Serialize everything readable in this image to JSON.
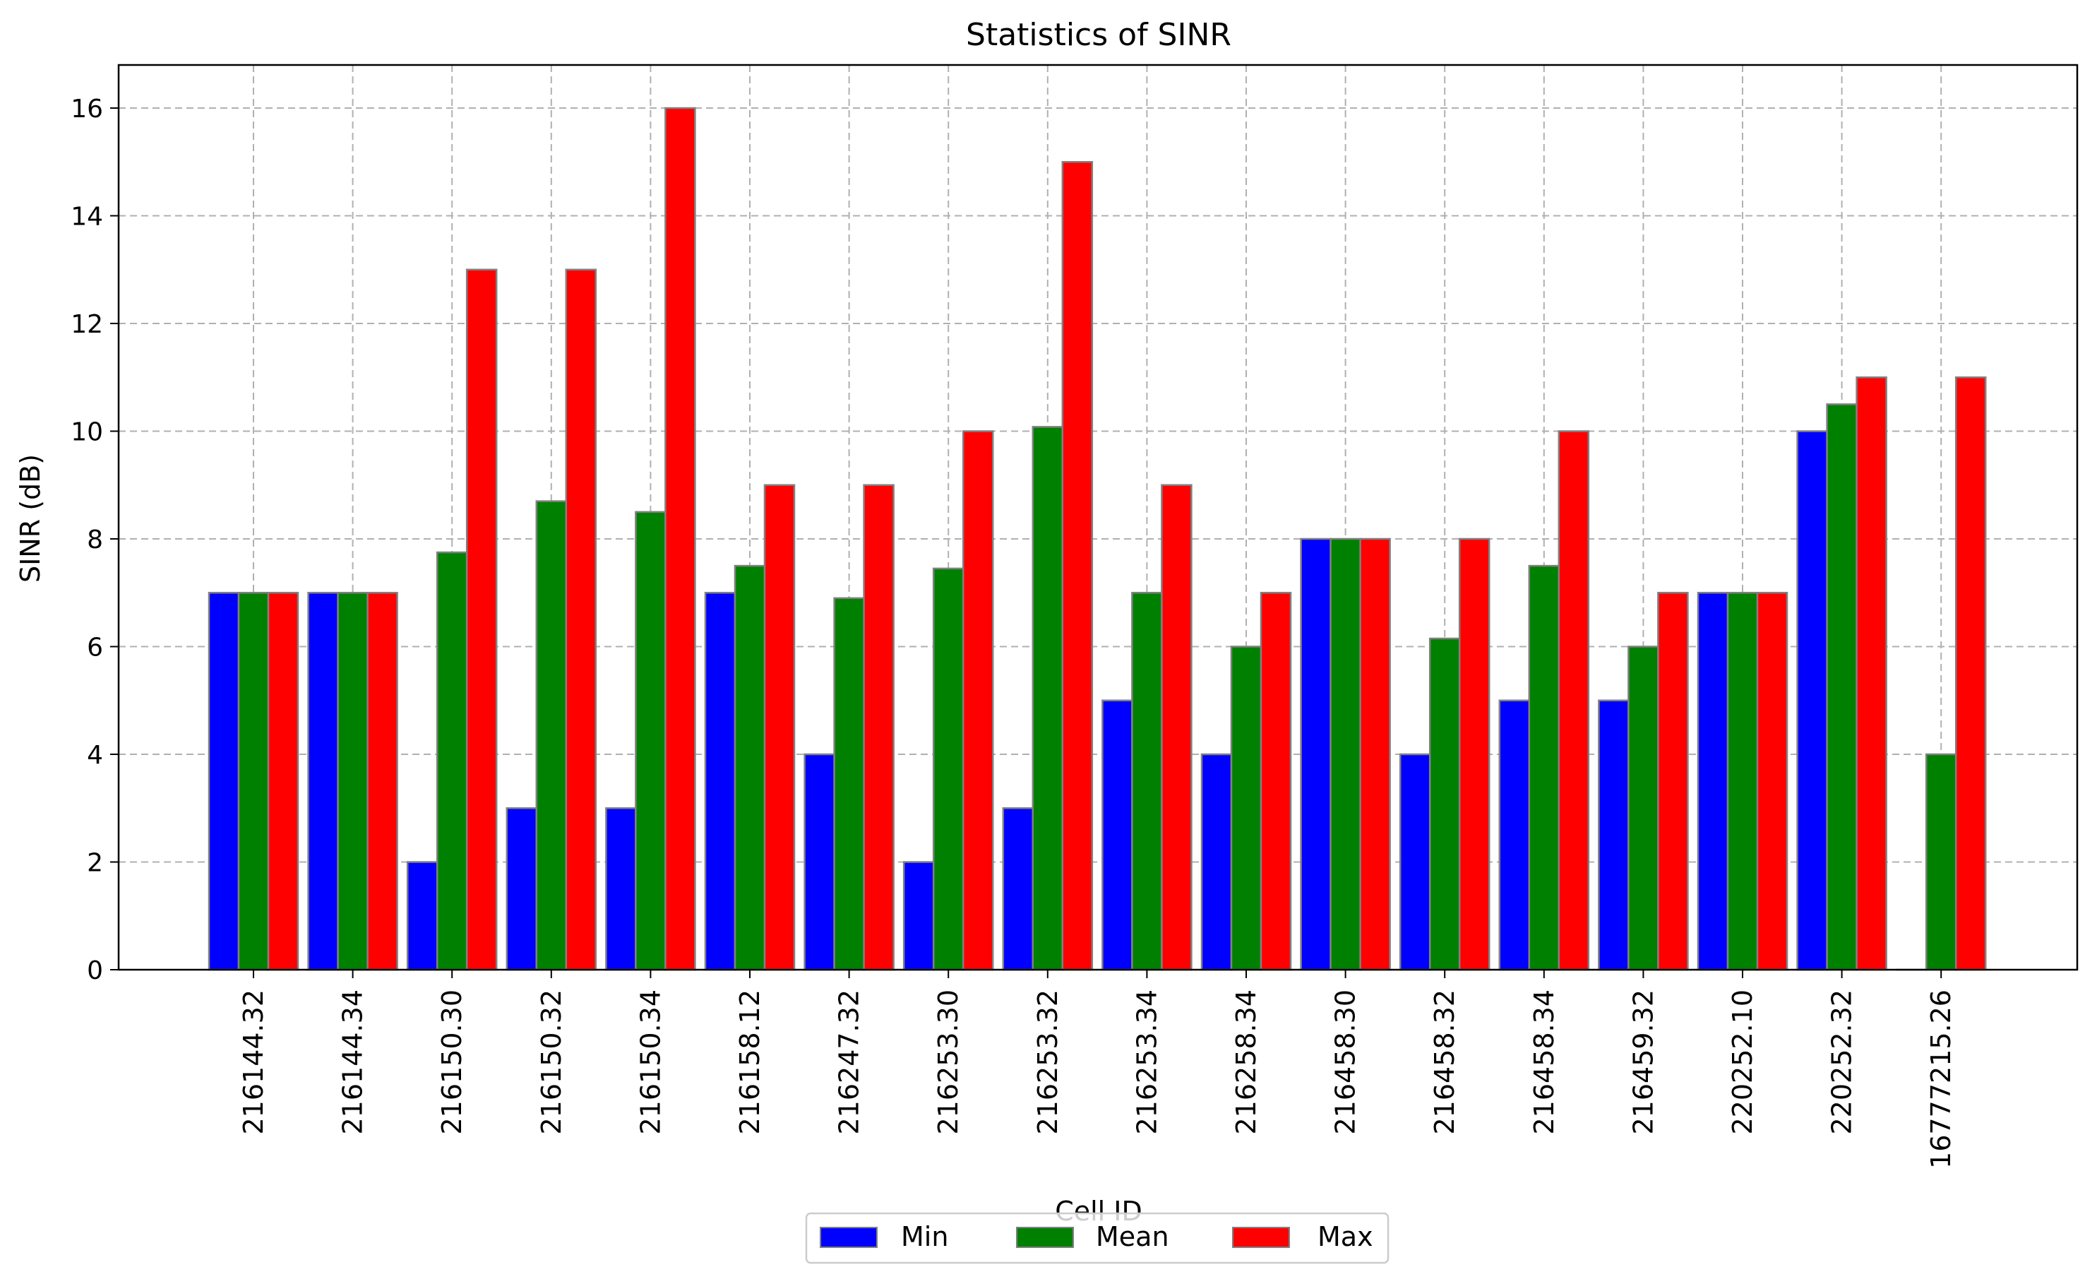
{
  "chart_data": {
    "type": "bar",
    "title": "Statistics of SINR",
    "xlabel": "Cell ID",
    "ylabel": "SINR (dB)",
    "ylim": [
      0,
      16.8
    ],
    "yticks": [
      0,
      2,
      4,
      6,
      8,
      10,
      12,
      14,
      16
    ],
    "grid": true,
    "legend_position": "bottom-center",
    "categories": [
      "216144.32",
      "216144.34",
      "216150.30",
      "216150.32",
      "216150.34",
      "216158.12",
      "216247.32",
      "216253.30",
      "216253.32",
      "216253.34",
      "216258.34",
      "216458.30",
      "216458.32",
      "216458.34",
      "216459.32",
      "220252.10",
      "220252.32",
      "16777215.26"
    ],
    "series": [
      {
        "name": "Min",
        "color": "#0000ff",
        "values": [
          7,
          7,
          2,
          3,
          3,
          7,
          4,
          2,
          3,
          5,
          4,
          8,
          4,
          5,
          5,
          7,
          10,
          0
        ]
      },
      {
        "name": "Mean",
        "color": "#008000",
        "values": [
          7,
          7,
          7.75,
          8.7,
          8.5,
          7.5,
          6.9,
          7.45,
          10.08,
          7,
          6,
          8,
          6.15,
          7.5,
          6,
          7,
          10.5,
          4
        ]
      },
      {
        "name": "Max",
        "color": "#ff0000",
        "values": [
          7,
          7,
          13,
          13,
          16,
          9,
          9,
          10,
          15,
          9,
          7,
          8,
          8,
          10,
          7,
          7,
          11,
          11
        ]
      }
    ]
  }
}
